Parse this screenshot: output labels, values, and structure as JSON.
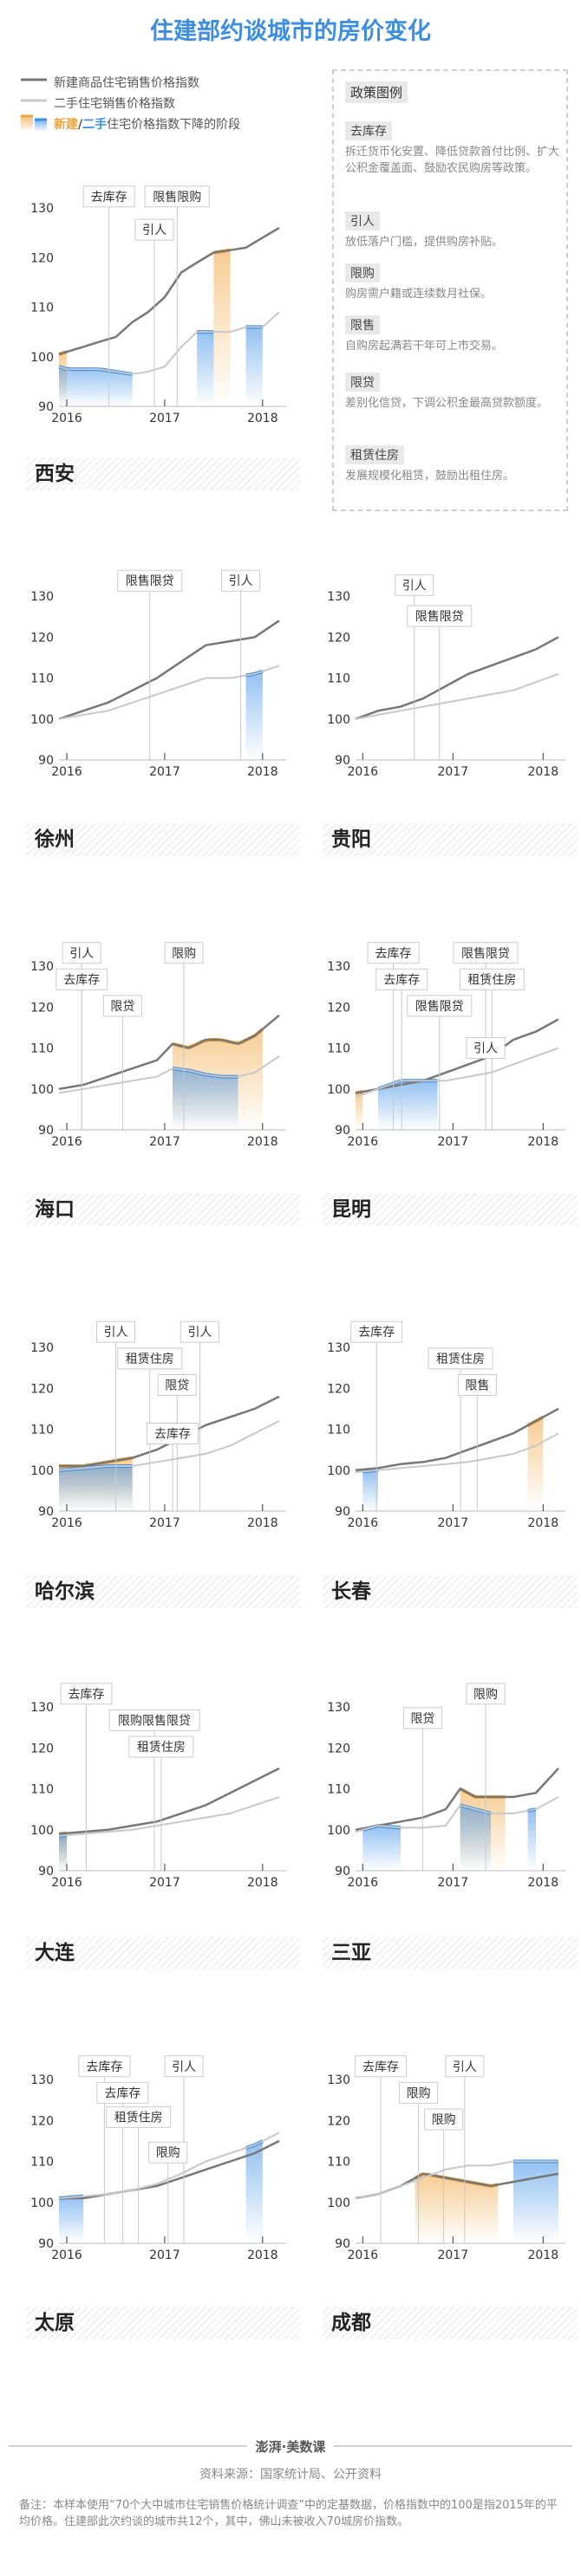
{
  "title": "住建部约谈城市的房价变化",
  "legend": {
    "new": "新建商品住宅销售价格指数",
    "second": "二手住宅销售价格指数",
    "decline_new": "新建",
    "decline_slash": "/",
    "decline_second": "二手",
    "decline_rest": "住宅价格指数下降的阶段"
  },
  "colors": {
    "new": "#777777",
    "second": "#c8c8c8",
    "new_decline": "#f0a43c",
    "second_decline": "#3a8ee6"
  },
  "policy": {
    "title": "政策图例",
    "items": [
      {
        "term": "去库存",
        "desc": "拆迁货币化安置、降低贷款首付比例、扩大公积金覆盖面、鼓励农民购房等政策。"
      },
      {
        "term": "引人",
        "desc": "放低落户门槛，提供购房补贴。"
      },
      {
        "term": "限购",
        "desc": "购房需户籍或连续数月社保。"
      },
      {
        "term": "限售",
        "desc": "自购房起满若干年可上市交易。"
      },
      {
        "term": "限贷",
        "desc": "差别化信贷，下调公积金最高贷款额度。"
      },
      {
        "term": "租赁住房",
        "desc": "发展规模化租赁，鼓励出租住房。"
      }
    ]
  },
  "chart_data": [
    {
      "type": "line",
      "city": "西安",
      "x": [
        2015.92,
        2016.0,
        2016.17,
        2016.33,
        2016.5,
        2016.67,
        2016.83,
        2017.0,
        2017.17,
        2017.33,
        2017.5,
        2017.67,
        2017.83,
        2018.0,
        2018.17
      ],
      "ylim": [
        90,
        130
      ],
      "xticks": [
        2016,
        2017,
        2018
      ],
      "yticks": [
        90,
        100,
        110,
        120,
        130
      ],
      "series": [
        {
          "name": "新建",
          "values": [
            100.5,
            101,
            102,
            103,
            104,
            107,
            109,
            112,
            117,
            119,
            121,
            121.5,
            122,
            124,
            126
          ]
        },
        {
          "name": "二手",
          "values": [
            98,
            97.5,
            97.5,
            97.5,
            97,
            96.5,
            97,
            98,
            102,
            105,
            105,
            105,
            106,
            106,
            109
          ]
        }
      ],
      "decline_new": [
        [
          0,
          0.6
        ]
      ],
      "decline_second": [
        [
          0,
          3.5
        ],
        [
          4.3,
          5
        ]
      ],
      "declines": [
        {
          "series": "new",
          "x": [
            2015.92,
            2016.0
          ]
        },
        {
          "series": "second",
          "x": [
            2015.92,
            2016.67
          ]
        },
        {
          "series": "new",
          "x": [
            2017.5,
            2017.67
          ]
        },
        {
          "series": "second",
          "x": [
            2017.33,
            2017.5
          ]
        },
        {
          "series": "second",
          "x": [
            2017.83,
            2018.0
          ]
        }
      ],
      "annotations": [
        "去库存",
        "限售限购",
        "引人"
      ]
    },
    {
      "type": "line",
      "city": "徐州",
      "x": [
        2015.92,
        2016.17,
        2016.42,
        2016.67,
        2016.92,
        2017.17,
        2017.42,
        2017.67,
        2017.92,
        2018.17
      ],
      "ylim": [
        90,
        130
      ],
      "xticks": [
        2016,
        2017,
        2018
      ],
      "yticks": [
        90,
        100,
        110,
        120,
        130
      ],
      "series": [
        {
          "name": "新建",
          "values": [
            100,
            102,
            104,
            107,
            110,
            114,
            118,
            119,
            120,
            124
          ]
        },
        {
          "name": "二手",
          "values": [
            100,
            101,
            102,
            104,
            106,
            108,
            110,
            110,
            111,
            113
          ]
        }
      ],
      "declines": [
        {
          "series": "second",
          "x": [
            2017.83,
            2018.0
          ]
        }
      ],
      "annotations": [
        "限售限贷",
        "引人"
      ]
    },
    {
      "type": "line",
      "city": "贵阳",
      "x": [
        2015.92,
        2016.17,
        2016.42,
        2016.67,
        2016.92,
        2017.17,
        2017.42,
        2017.67,
        2017.92,
        2018.17
      ],
      "ylim": [
        90,
        130
      ],
      "xticks": [
        2016,
        2017,
        2018
      ],
      "yticks": [
        90,
        100,
        110,
        120,
        130
      ],
      "series": [
        {
          "name": "新建",
          "values": [
            100,
            102,
            103,
            105,
            108,
            111,
            113,
            115,
            117,
            120
          ]
        },
        {
          "name": "二手",
          "values": [
            100,
            101,
            102,
            103,
            104,
            105,
            106,
            107,
            109,
            111
          ]
        }
      ],
      "declines": [],
      "annotations": [
        "引人",
        "限售限贷"
      ]
    },
    {
      "type": "line",
      "city": "海口",
      "x": [
        2015.92,
        2016.17,
        2016.42,
        2016.67,
        2016.92,
        2017.08,
        2017.25,
        2017.42,
        2017.58,
        2017.75,
        2017.92,
        2018.17
      ],
      "ylim": [
        90,
        130
      ],
      "xticks": [
        2016,
        2017,
        2018
      ],
      "yticks": [
        90,
        100,
        110,
        120,
        130
      ],
      "series": [
        {
          "name": "新建",
          "values": [
            100,
            101,
            103,
            105,
            107,
            111,
            110,
            112,
            112,
            111,
            113,
            118
          ]
        },
        {
          "name": "二手",
          "values": [
            99,
            100,
            101,
            102,
            103,
            105,
            104.5,
            103.5,
            103,
            103,
            104,
            108
          ]
        }
      ],
      "declines": [
        {
          "series": "new",
          "x": [
            2017.08,
            2018.0
          ]
        },
        {
          "series": "second",
          "x": [
            2017.08,
            2017.75
          ]
        }
      ],
      "annotations": [
        "引人",
        "限购",
        "去库存",
        "限贷"
      ]
    },
    {
      "type": "line",
      "city": "昆明",
      "x": [
        2015.92,
        2016.17,
        2016.42,
        2016.67,
        2016.92,
        2017.17,
        2017.42,
        2017.67,
        2017.92,
        2018.17
      ],
      "ylim": [
        90,
        130
      ],
      "xticks": [
        2016,
        2017,
        2018
      ],
      "yticks": [
        90,
        100,
        110,
        120,
        130
      ],
      "series": [
        {
          "name": "新建",
          "values": [
            99,
            100,
            101,
            102,
            104,
            106,
            108,
            112,
            114,
            117
          ]
        },
        {
          "name": "二手",
          "values": [
            98,
            100,
            102,
            102,
            102,
            103,
            104,
            106,
            108,
            110
          ]
        }
      ],
      "declines": [
        {
          "series": "new",
          "x": [
            2015.92,
            2016.0
          ]
        },
        {
          "series": "second",
          "x": [
            2016.17,
            2016.83
          ]
        }
      ],
      "annotations": [
        "去库存",
        "限售限贷",
        "去库存",
        "租赁住房",
        "限售限贷",
        "引人"
      ]
    },
    {
      "type": "line",
      "city": "哈尔滨",
      "x": [
        2015.92,
        2016.17,
        2016.42,
        2016.67,
        2016.92,
        2017.17,
        2017.42,
        2017.67,
        2017.92,
        2018.17
      ],
      "ylim": [
        90,
        130
      ],
      "xticks": [
        2016,
        2017,
        2018
      ],
      "yticks": [
        90,
        100,
        110,
        120,
        130
      ],
      "series": [
        {
          "name": "新建",
          "values": [
            101,
            101,
            102,
            103,
            105,
            108,
            111,
            113,
            115,
            118
          ]
        },
        {
          "name": "二手",
          "values": [
            100,
            100.5,
            101,
            101,
            102,
            103,
            104,
            106,
            109,
            112
          ]
        }
      ],
      "declines": [
        {
          "series": "new",
          "x": [
            2015.92,
            2016.67
          ]
        },
        {
          "series": "second",
          "x": [
            2015.92,
            2016.67
          ]
        }
      ],
      "annotations": [
        "引人",
        "引人",
        "租赁住房",
        "限贷",
        "去库存"
      ]
    },
    {
      "type": "line",
      "city": "长春",
      "x": [
        2015.92,
        2016.17,
        2016.42,
        2016.67,
        2016.92,
        2017.17,
        2017.42,
        2017.67,
        2017.92,
        2018.17
      ],
      "ylim": [
        90,
        130
      ],
      "xticks": [
        2016,
        2017,
        2018
      ],
      "yticks": [
        90,
        100,
        110,
        120,
        130
      ],
      "series": [
        {
          "name": "新建",
          "values": [
            100,
            100.5,
            101.5,
            102,
            103,
            105,
            107,
            109,
            112,
            115
          ]
        },
        {
          "name": "二手",
          "values": [
            99.5,
            100,
            100.5,
            101,
            101.5,
            102,
            103,
            104,
            106,
            109
          ]
        }
      ],
      "declines": [
        {
          "series": "second",
          "x": [
            2016.0,
            2016.17
          ]
        },
        {
          "series": "new",
          "x": [
            2017.83,
            2018.0
          ]
        }
      ],
      "annotations": [
        "去库存",
        "租赁住房",
        "限售"
      ]
    },
    {
      "type": "line",
      "city": "大连",
      "x": [
        2015.92,
        2016.17,
        2016.42,
        2016.67,
        2016.92,
        2017.17,
        2017.42,
        2017.67,
        2017.92,
        2018.17
      ],
      "ylim": [
        90,
        130
      ],
      "xticks": [
        2016,
        2017,
        2018
      ],
      "yticks": [
        90,
        100,
        110,
        120,
        130
      ],
      "series": [
        {
          "name": "新建",
          "values": [
            99,
            99.5,
            100,
            101,
            102,
            104,
            106,
            109,
            112,
            115
          ]
        },
        {
          "name": "二手",
          "values": [
            98.5,
            99,
            99.5,
            100,
            101,
            102,
            103,
            104,
            106,
            108
          ]
        }
      ],
      "declines": [
        {
          "series": "new",
          "x": [
            2015.92,
            2016.0
          ]
        },
        {
          "series": "second",
          "x": [
            2015.92,
            2016.0
          ]
        }
      ],
      "annotations": [
        "去库存",
        "限购限售限贷",
        "租赁住房"
      ]
    },
    {
      "type": "line",
      "city": "三亚",
      "x": [
        2015.92,
        2016.17,
        2016.42,
        2016.67,
        2016.92,
        2017.08,
        2017.25,
        2017.42,
        2017.67,
        2017.92,
        2018.17
      ],
      "ylim": [
        90,
        130
      ],
      "xticks": [
        2016,
        2017,
        2018
      ],
      "yticks": [
        90,
        100,
        110,
        120,
        130
      ],
      "series": [
        {
          "name": "新建",
          "values": [
            100,
            101,
            102,
            103,
            105,
            110,
            108,
            108,
            108,
            109,
            115
          ]
        },
        {
          "name": "二手",
          "values": [
            99.5,
            101,
            100.5,
            100.5,
            101,
            106,
            105,
            104,
            104,
            105,
            108
          ]
        }
      ],
      "declines": [
        {
          "series": "second",
          "x": [
            2016.0,
            2016.42
          ]
        },
        {
          "series": "new",
          "x": [
            2017.08,
            2017.58
          ]
        },
        {
          "series": "second",
          "x": [
            2017.08,
            2017.42
          ]
        },
        {
          "series": "second",
          "x": [
            2017.83,
            2017.92
          ]
        }
      ],
      "annotations": [
        "限购",
        "限贷"
      ]
    },
    {
      "type": "line",
      "city": "太原",
      "x": [
        2015.92,
        2016.17,
        2016.42,
        2016.67,
        2016.92,
        2017.17,
        2017.42,
        2017.67,
        2017.92,
        2018.17
      ],
      "ylim": [
        90,
        130
      ],
      "xticks": [
        2016,
        2017,
        2018
      ],
      "yticks": [
        90,
        100,
        110,
        120,
        130
      ],
      "series": [
        {
          "name": "新建",
          "values": [
            101,
            101,
            102,
            103,
            104,
            106,
            108,
            110,
            112,
            115
          ]
        },
        {
          "name": "二手",
          "values": [
            101,
            101.5,
            102,
            103,
            104.5,
            107,
            110,
            112,
            114,
            117
          ]
        }
      ],
      "declines": [
        {
          "series": "second",
          "x": [
            2015.92,
            2016.17
          ]
        },
        {
          "series": "second",
          "x": [
            2017.83,
            2018.0
          ]
        }
      ],
      "annotations": [
        "去库存",
        "引人",
        "去库存",
        "租赁住房",
        "限购"
      ]
    },
    {
      "type": "line",
      "city": "成都",
      "x": [
        2015.92,
        2016.17,
        2016.42,
        2016.67,
        2016.92,
        2017.17,
        2017.42,
        2017.67,
        2017.92,
        2018.17
      ],
      "ylim": [
        90,
        130
      ],
      "xticks": [
        2016,
        2017,
        2018
      ],
      "yticks": [
        90,
        100,
        110,
        120,
        130
      ],
      "series": [
        {
          "name": "新建",
          "values": [
            101,
            102,
            104,
            107,
            106,
            105,
            104,
            105,
            106,
            107
          ]
        },
        {
          "name": "二手",
          "values": [
            101,
            102,
            104,
            106,
            108,
            109,
            109,
            110,
            110,
            110
          ]
        }
      ],
      "declines": [
        {
          "series": "new",
          "x": [
            2016.58,
            2017.5
          ]
        },
        {
          "series": "second",
          "x": [
            2017.67,
            2018.17
          ]
        }
      ],
      "annotations": [
        "去库存",
        "引人",
        "限购",
        "限购"
      ]
    }
  ],
  "footer": {
    "logo": "澎湃·美数课",
    "source": "资料来源：国家统计局、公开资料",
    "note": "备注：本样本使用“70个大中城市住宅销售价格统计调查”中的定基数据，价格指数中的100是指2015年的平均价格。住建部此次约谈的城市共12个，其中，佛山未被收入70城房价指数。"
  }
}
